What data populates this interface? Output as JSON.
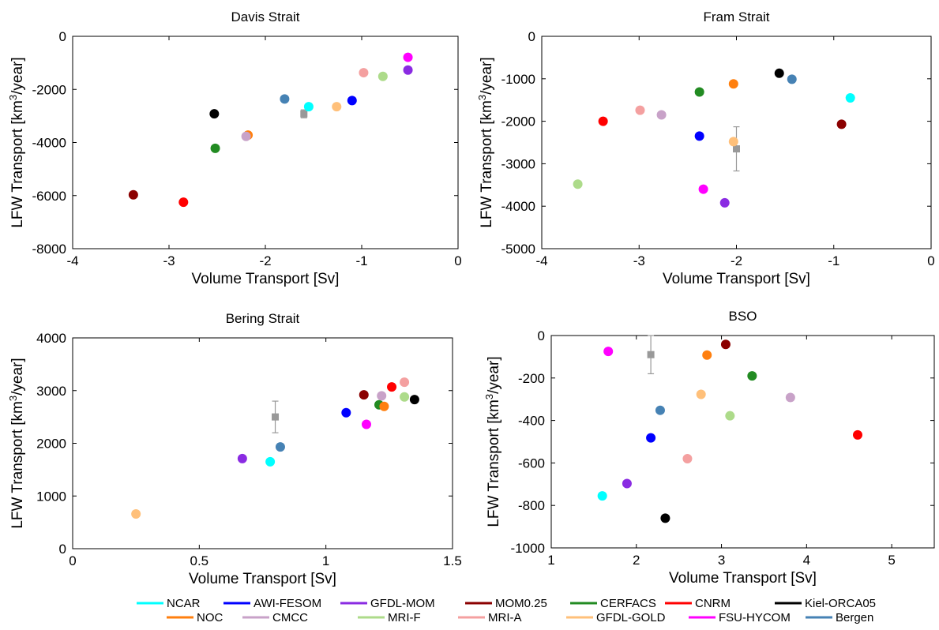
{
  "chart_data": [
    {
      "type": "scatter",
      "title": "Davis Strait",
      "xlabel": "Volume Transport [Sv]",
      "ylabel_main": "LFW Transport [km",
      "ylabel_sup": "3",
      "ylabel_tail": "/year]",
      "xlim": [
        -4,
        0
      ],
      "ylim": [
        -8000,
        0
      ],
      "xticks": [
        -4,
        -3,
        -2,
        -1,
        0
      ],
      "yticks": [
        -8000,
        -6000,
        -4000,
        -2000,
        0
      ],
      "points": [
        {
          "model": "NCAR",
          "x": -1.55,
          "y": -2650
        },
        {
          "model": "AWI-FESOM",
          "x": -1.1,
          "y": -2420
        },
        {
          "model": "GFDL-MOM",
          "x": -0.52,
          "y": -1270
        },
        {
          "model": "MOM0.25",
          "x": -3.37,
          "y": -5970
        },
        {
          "model": "CERFACS",
          "x": -2.52,
          "y": -4220
        },
        {
          "model": "CNRM",
          "x": -2.85,
          "y": -6250
        },
        {
          "model": "Kiel-ORCA05",
          "x": -2.53,
          "y": -2920
        },
        {
          "model": "NOC",
          "x": -2.18,
          "y": -3720
        },
        {
          "model": "CMCC",
          "x": -2.2,
          "y": -3770
        },
        {
          "model": "MRI-F",
          "x": -0.78,
          "y": -1510
        },
        {
          "model": "MRI-A",
          "x": -0.98,
          "y": -1370
        },
        {
          "model": "GFDL-GOLD",
          "x": -1.26,
          "y": -2650
        },
        {
          "model": "FSU-HYCOM",
          "x": -0.52,
          "y": -790
        },
        {
          "model": "Bergen",
          "x": -1.8,
          "y": -2360
        }
      ],
      "observation": {
        "x": -1.6,
        "y": -2920,
        "yerr": 150
      }
    },
    {
      "type": "scatter",
      "title": "Fram Strait",
      "xlabel": "Volume Transport [Sv]",
      "ylabel_main": "LFW Transport [km",
      "ylabel_sup": "3",
      "ylabel_tail": "/year]",
      "xlim": [
        -4,
        0
      ],
      "ylim": [
        -5000,
        0
      ],
      "xticks": [
        -4,
        -3,
        -2,
        -1,
        0
      ],
      "yticks": [
        -5000,
        -4000,
        -3000,
        -2000,
        -1000,
        0
      ],
      "points": [
        {
          "model": "NCAR",
          "x": -0.83,
          "y": -1450
        },
        {
          "model": "AWI-FESOM",
          "x": -2.38,
          "y": -2350
        },
        {
          "model": "GFDL-MOM",
          "x": -2.12,
          "y": -3920
        },
        {
          "model": "MOM0.25",
          "x": -0.92,
          "y": -2070
        },
        {
          "model": "CERFACS",
          "x": -2.38,
          "y": -1310
        },
        {
          "model": "CNRM",
          "x": -3.37,
          "y": -2000
        },
        {
          "model": "Kiel-ORCA05",
          "x": -1.56,
          "y": -870
        },
        {
          "model": "NOC",
          "x": -2.03,
          "y": -1120
        },
        {
          "model": "CMCC",
          "x": -2.77,
          "y": -1850
        },
        {
          "model": "MRI-F",
          "x": -3.63,
          "y": -3480
        },
        {
          "model": "MRI-A",
          "x": -2.99,
          "y": -1740
        },
        {
          "model": "GFDL-GOLD",
          "x": -2.03,
          "y": -2480
        },
        {
          "model": "FSU-HYCOM",
          "x": -2.34,
          "y": -3600
        },
        {
          "model": "Bergen",
          "x": -1.43,
          "y": -1010
        }
      ],
      "observation": {
        "x": -2.0,
        "y": -2650,
        "yerr": 520
      }
    },
    {
      "type": "scatter",
      "title": "Bering Strait",
      "xlabel": "Volume Transport [Sv]",
      "ylabel_main": "LFW Transport [km",
      "ylabel_sup": "3",
      "ylabel_tail": "/year]",
      "xlim": [
        0,
        1.5
      ],
      "ylim": [
        0,
        4000
      ],
      "xticks": [
        0,
        0.5,
        1,
        1.5
      ],
      "yticks": [
        0,
        1000,
        2000,
        3000,
        4000
      ],
      "points": [
        {
          "model": "NCAR",
          "x": 0.78,
          "y": 1650
        },
        {
          "model": "AWI-FESOM",
          "x": 1.08,
          "y": 2580
        },
        {
          "model": "GFDL-MOM",
          "x": 0.67,
          "y": 1710
        },
        {
          "model": "MOM0.25",
          "x": 1.15,
          "y": 2920
        },
        {
          "model": "CERFACS",
          "x": 1.21,
          "y": 2730
        },
        {
          "model": "CNRM",
          "x": 1.26,
          "y": 3070
        },
        {
          "model": "Kiel-ORCA05",
          "x": 1.35,
          "y": 2830
        },
        {
          "model": "NOC",
          "x": 1.23,
          "y": 2700
        },
        {
          "model": "CMCC",
          "x": 1.22,
          "y": 2900
        },
        {
          "model": "MRI-F",
          "x": 1.31,
          "y": 2880
        },
        {
          "model": "MRI-A",
          "x": 1.31,
          "y": 3160
        },
        {
          "model": "GFDL-GOLD",
          "x": 0.25,
          "y": 660
        },
        {
          "model": "FSU-HYCOM",
          "x": 1.16,
          "y": 2360
        },
        {
          "model": "Bergen",
          "x": 0.82,
          "y": 1930
        }
      ],
      "observation": {
        "x": 0.8,
        "y": 2500,
        "yerr": 300
      }
    },
    {
      "type": "scatter",
      "title": "BSO",
      "xlabel": "Volume Transport [Sv]",
      "ylabel_main": "LFW Transport [km",
      "ylabel_sup": "3",
      "ylabel_tail": "/year]",
      "xlim": [
        1,
        5.5
      ],
      "ylim": [
        -1000,
        0
      ],
      "xticks": [
        1,
        2,
        3,
        4,
        5
      ],
      "yticks": [
        -1000,
        -800,
        -600,
        -400,
        -200,
        0
      ],
      "points": [
        {
          "model": "NCAR",
          "x": 1.6,
          "y": -755
        },
        {
          "model": "AWI-FESOM",
          "x": 2.17,
          "y": -482
        },
        {
          "model": "GFDL-MOM",
          "x": 1.89,
          "y": -697
        },
        {
          "model": "MOM0.25",
          "x": 3.05,
          "y": -42
        },
        {
          "model": "CERFACS",
          "x": 3.36,
          "y": -190
        },
        {
          "model": "CNRM",
          "x": 4.6,
          "y": -468
        },
        {
          "model": "Kiel-ORCA05",
          "x": 2.34,
          "y": -860
        },
        {
          "model": "NOC",
          "x": 2.83,
          "y": -92
        },
        {
          "model": "CMCC",
          "x": 3.81,
          "y": -292
        },
        {
          "model": "MRI-F",
          "x": 3.1,
          "y": -378
        },
        {
          "model": "MRI-A",
          "x": 2.6,
          "y": -580
        },
        {
          "model": "GFDL-GOLD",
          "x": 2.76,
          "y": -277
        },
        {
          "model": "FSU-HYCOM",
          "x": 1.67,
          "y": -75
        },
        {
          "model": "Bergen",
          "x": 2.28,
          "y": -352
        }
      ],
      "observation": {
        "x": 2.17,
        "y": -90,
        "yerr": 90
      }
    }
  ],
  "legend": {
    "placement": "bottom",
    "entries": [
      {
        "name": "NCAR",
        "color": "#00FFFF"
      },
      {
        "name": "AWI-FESOM",
        "color": "#0000FF"
      },
      {
        "name": "GFDL-MOM",
        "color": "#8A2BE2"
      },
      {
        "name": "MOM0.25",
        "color": "#8B0000"
      },
      {
        "name": "CERFACS",
        "color": "#228B22"
      },
      {
        "name": "CNRM",
        "color": "#FF0000"
      },
      {
        "name": "Kiel-ORCA05",
        "color": "#000000"
      },
      {
        "name": "NOC",
        "color": "#FF7F0E"
      },
      {
        "name": "CMCC",
        "color": "#C8A2C8"
      },
      {
        "name": "MRI-F",
        "color": "#ADDB8A"
      },
      {
        "name": "MRI-A",
        "color": "#F4A0A0"
      },
      {
        "name": "GFDL-GOLD",
        "color": "#FFC07A"
      },
      {
        "name": "FSU-HYCOM",
        "color": "#FF00FF"
      },
      {
        "name": "Bergen",
        "color": "#4682B4"
      }
    ]
  },
  "observation_color": "#999999"
}
